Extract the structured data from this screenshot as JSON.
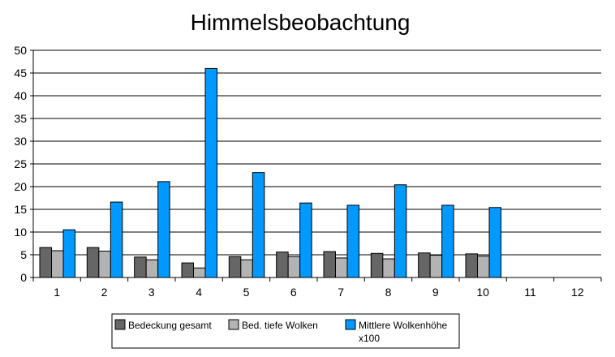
{
  "chart_data": {
    "type": "bar",
    "title": "Himmelsbeobachtung",
    "xlabel": "",
    "ylabel": "",
    "categories": [
      "1",
      "2",
      "3",
      "4",
      "5",
      "6",
      "7",
      "8",
      "9",
      "10",
      "11",
      "12"
    ],
    "ylim": [
      0,
      50
    ],
    "yticks": [
      0,
      5,
      10,
      15,
      20,
      25,
      30,
      35,
      40,
      45,
      50
    ],
    "grid": true,
    "legend_position": "bottom",
    "series": [
      {
        "name": "Bedeckung gesamt",
        "color": "#666666",
        "values": [
          6.6,
          6.6,
          4.5,
          3.2,
          4.6,
          5.6,
          5.7,
          5.3,
          5.4,
          5.2,
          null,
          null
        ]
      },
      {
        "name": "Bed. tiefe Wolken",
        "color": "#b3b3b3",
        "values": [
          5.9,
          5.8,
          3.9,
          2.1,
          3.9,
          4.6,
          4.3,
          4.1,
          4.9,
          4.7,
          null,
          null
        ]
      },
      {
        "name": "Mittlere Wolkenhöhe x100",
        "color": "#0099ff",
        "legend_lines": [
          "Mittlere Wolkenhöhe",
          "x100"
        ],
        "values": [
          10.5,
          16.6,
          21.1,
          46.0,
          23.1,
          16.4,
          15.9,
          20.4,
          15.9,
          15.4,
          null,
          null
        ]
      }
    ]
  }
}
